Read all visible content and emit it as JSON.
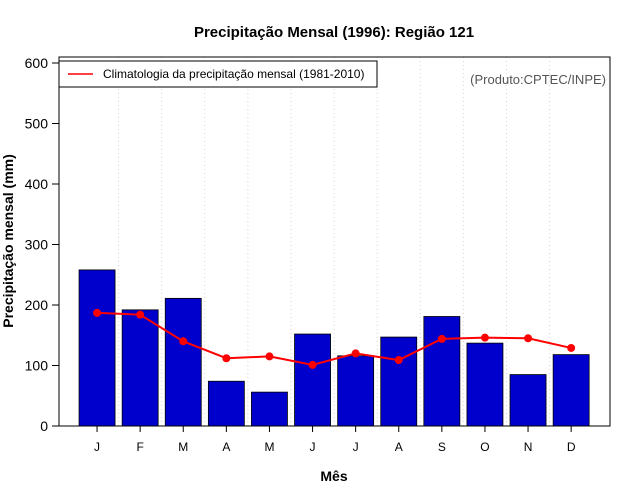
{
  "chart_data": {
    "type": "bar",
    "title": "Precipitação Mensal (1996): Região 121",
    "xlabel": "Mês",
    "ylabel": "Precipitação mensal (mm)",
    "categories": [
      "J",
      "F",
      "M",
      "A",
      "M",
      "J",
      "J",
      "A",
      "S",
      "O",
      "N",
      "D"
    ],
    "ylim": [
      0,
      600
    ],
    "yticks": [
      0,
      100,
      200,
      300,
      400,
      500,
      600
    ],
    "grid": "vertical dotted",
    "series": [
      {
        "name": "Precipitação mensal 1996",
        "type": "bar",
        "color": "#0000cd",
        "values": [
          258,
          192,
          211,
          74,
          56,
          152,
          116,
          147,
          181,
          137,
          85,
          118
        ]
      },
      {
        "name": "Climatologia da precipitação mensal (1981-2010)",
        "type": "line",
        "color": "#ff0000",
        "values": [
          187,
          184,
          140,
          112,
          115,
          101,
          120,
          109,
          144,
          146,
          145,
          129
        ]
      }
    ],
    "legend": {
      "position": "top-left",
      "entries": [
        "Climatologia da precipitação mensal (1981-2010)"
      ]
    },
    "annotation": "(Produto:CPTEC/INPE)"
  }
}
